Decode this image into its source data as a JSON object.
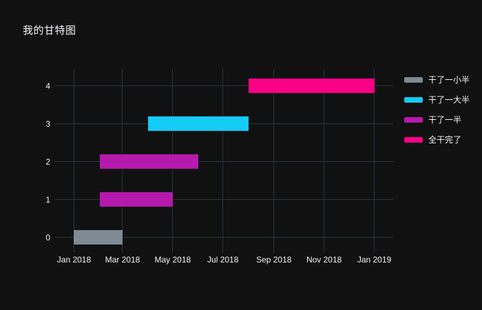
{
  "title": "我的甘特图",
  "colors": {
    "background": "#111111",
    "plot_background": "#111111",
    "grid": "#283442",
    "text": "#f2f5fa",
    "bar_gray": "#7e8a94",
    "bar_cyan": "#13cbf5",
    "bar_magenta": "#b619ad",
    "bar_pink": "#fb0087"
  },
  "chart_data": {
    "type": "bar",
    "subtype": "gantt-timeline",
    "title": "我的甘特图",
    "xlabel": "",
    "ylabel": "",
    "grid": true,
    "legend_position": "right",
    "x_range": [
      "2017-12-09",
      "2019-01-24"
    ],
    "y_range": [
      -0.4,
      4.45
    ],
    "x_ticks": [
      {
        "label": "Jan 2018",
        "date": "2018-01-01"
      },
      {
        "label": "Mar 2018",
        "date": "2018-03-01"
      },
      {
        "label": "May 2018",
        "date": "2018-05-01"
      },
      {
        "label": "Jul 2018",
        "date": "2018-07-01"
      },
      {
        "label": "Sep 2018",
        "date": "2018-09-01"
      },
      {
        "label": "Nov 2018",
        "date": "2018-11-01"
      },
      {
        "label": "Jan 2019",
        "date": "2019-01-01"
      }
    ],
    "y_ticks": [
      {
        "label": "0",
        "value": 0
      },
      {
        "label": "1",
        "value": 1
      },
      {
        "label": "2",
        "value": 2
      },
      {
        "label": "3",
        "value": 3
      },
      {
        "label": "4",
        "value": 4
      }
    ],
    "series": [
      {
        "name": "干了一小半",
        "color": "#7e8a94",
        "tasks": [
          {
            "y": 0,
            "start": "2018-01-01",
            "end": "2018-03-01"
          }
        ]
      },
      {
        "name": "干了一大半",
        "color": "#13cbf5",
        "tasks": [
          {
            "y": 3,
            "start": "2018-04-01",
            "end": "2018-08-01"
          }
        ]
      },
      {
        "name": "干了一半",
        "color": "#b619ad",
        "tasks": [
          {
            "y": 1,
            "start": "2018-02-01",
            "end": "2018-05-01"
          },
          {
            "y": 2,
            "start": "2018-02-01",
            "end": "2018-06-01"
          }
        ]
      },
      {
        "name": "全干完了",
        "color": "#fb0087",
        "tasks": [
          {
            "y": 4,
            "start": "2018-08-01",
            "end": "2019-01-01"
          }
        ]
      }
    ]
  }
}
